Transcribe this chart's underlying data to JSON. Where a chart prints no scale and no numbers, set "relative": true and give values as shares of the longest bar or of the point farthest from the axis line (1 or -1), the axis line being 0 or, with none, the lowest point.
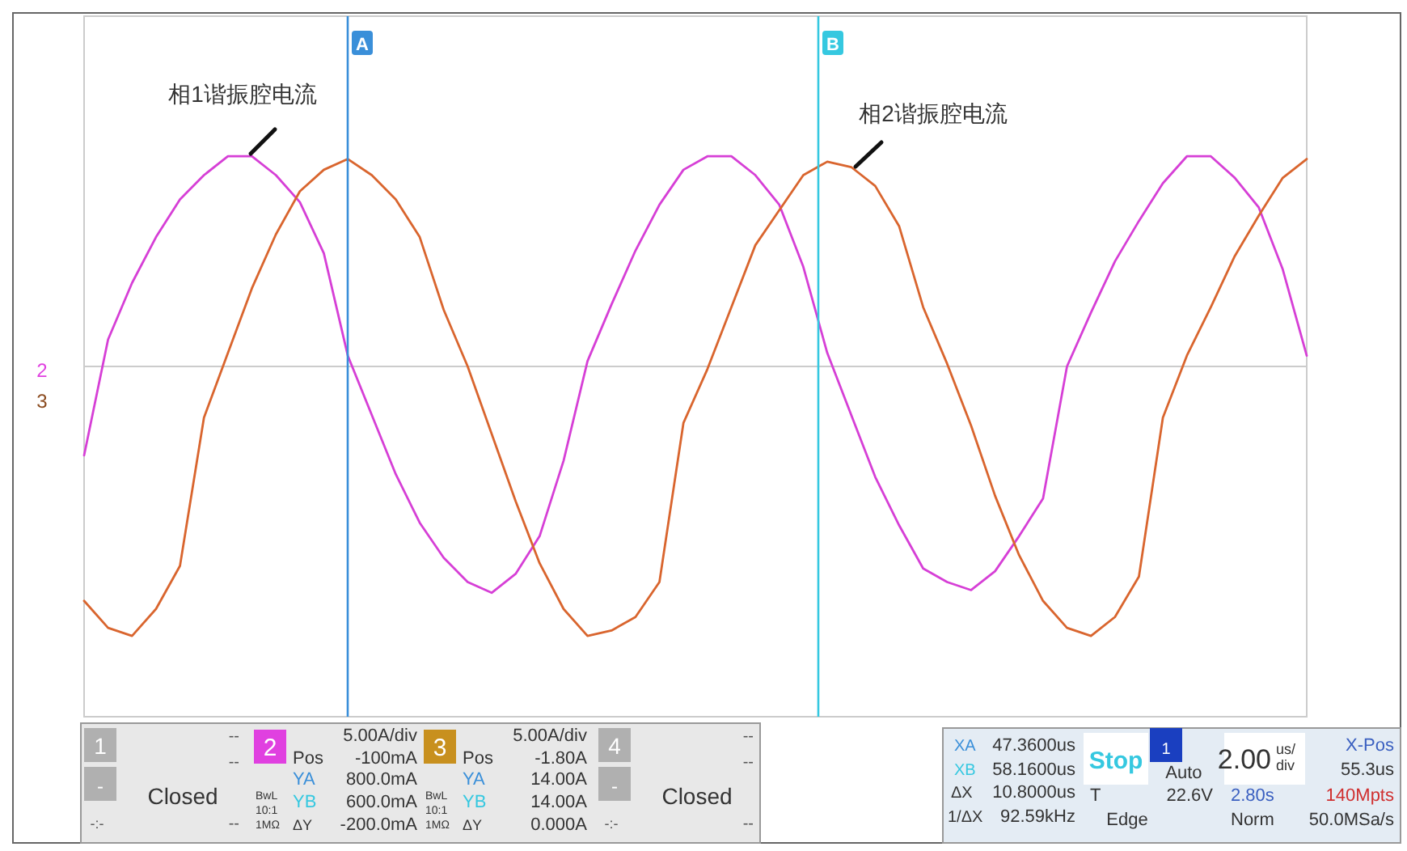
{
  "chart_data": {
    "type": "line",
    "relative": true,
    "categories": [
      null,
      null,
      null,
      null,
      null,
      null,
      null,
      null,
      null,
      null,
      null,
      null,
      null,
      null,
      null,
      null,
      null,
      null,
      null,
      null,
      null,
      null,
      null,
      null,
      null,
      null,
      null,
      null,
      null,
      null,
      null,
      null,
      null,
      null,
      null,
      null,
      null,
      null,
      null,
      null,
      null,
      null,
      null,
      null,
      null,
      null,
      null,
      null,
      null,
      null,
      null,
      null
    ],
    "series": [
      {
        "color": "#d63fd6",
        "values": [
          -0.33,
          0.1,
          0.31,
          0.48,
          0.62,
          0.71,
          0.78,
          0.78,
          0.71,
          0.61,
          0.42,
          0.04,
          -0.18,
          -0.4,
          -0.58,
          -0.71,
          -0.8,
          -0.84,
          -0.77,
          -0.63,
          -0.35,
          0.02,
          0.23,
          0.43,
          0.6,
          0.73,
          0.78,
          0.78,
          0.71,
          0.6,
          0.37,
          0.05,
          -0.18,
          -0.41,
          -0.59,
          -0.75,
          -0.8,
          -0.83,
          -0.76,
          -0.63,
          -0.49,
          0.0,
          0.2,
          0.39,
          0.54,
          0.68,
          0.78,
          0.78,
          0.7,
          0.59,
          0.36,
          0.04
        ]
      },
      {
        "color": "#d9652e",
        "values": [
          -0.87,
          -0.97,
          -1.0,
          -0.9,
          -0.74,
          -0.19,
          0.05,
          0.29,
          0.49,
          0.65,
          0.73,
          0.77,
          0.71,
          0.62,
          0.48,
          0.21,
          0.0,
          -0.25,
          -0.5,
          -0.73,
          -0.9,
          -1.0,
          -0.98,
          -0.93,
          -0.8,
          -0.21,
          -0.01,
          0.22,
          0.45,
          0.58,
          0.71,
          0.76,
          0.74,
          0.67,
          0.52,
          0.22,
          0.01,
          -0.22,
          -0.48,
          -0.7,
          -0.87,
          -0.97,
          -1.0,
          -0.93,
          -0.78,
          -0.19,
          0.04,
          0.22,
          0.41,
          0.56,
          0.7,
          0.77
        ]
      }
    ],
    "annotations": [
      "A",
      "B",
      "相1谐振腔电流",
      "相2谐振腔电流",
      "2",
      "3",
      "1",
      "--",
      "--",
      "-",
      "Closed",
      "-:-",
      "--",
      "2",
      "5.00A/div",
      "Pos",
      "-100mA",
      "YA",
      "800.0mA",
      "YB",
      "600.0mA",
      "BwL",
      "10:1",
      "1MΩ",
      "ΔY",
      "-200.0mA",
      "3",
      "5.00A/div",
      "Pos",
      "-1.80A",
      "YA",
      "14.00A",
      "YB",
      "14.00A",
      "BwL",
      "10:1",
      "1MΩ",
      "ΔY",
      "0.000A",
      "4",
      "--",
      "--",
      "-",
      "Closed",
      "-:-",
      "--",
      "XA",
      "47.3600us",
      "XB",
      "58.1600us",
      "ΔX",
      "10.8000us",
      "1/ΔX",
      "92.59kHz",
      "Stop",
      "1",
      "Auto",
      "T",
      "22.6V",
      "Edge",
      "2.00",
      "us/",
      "div",
      "X-Pos",
      "55.3us",
      "2.80s",
      "140Mpts",
      "Norm",
      "50.0MSa/s"
    ]
  }
}
